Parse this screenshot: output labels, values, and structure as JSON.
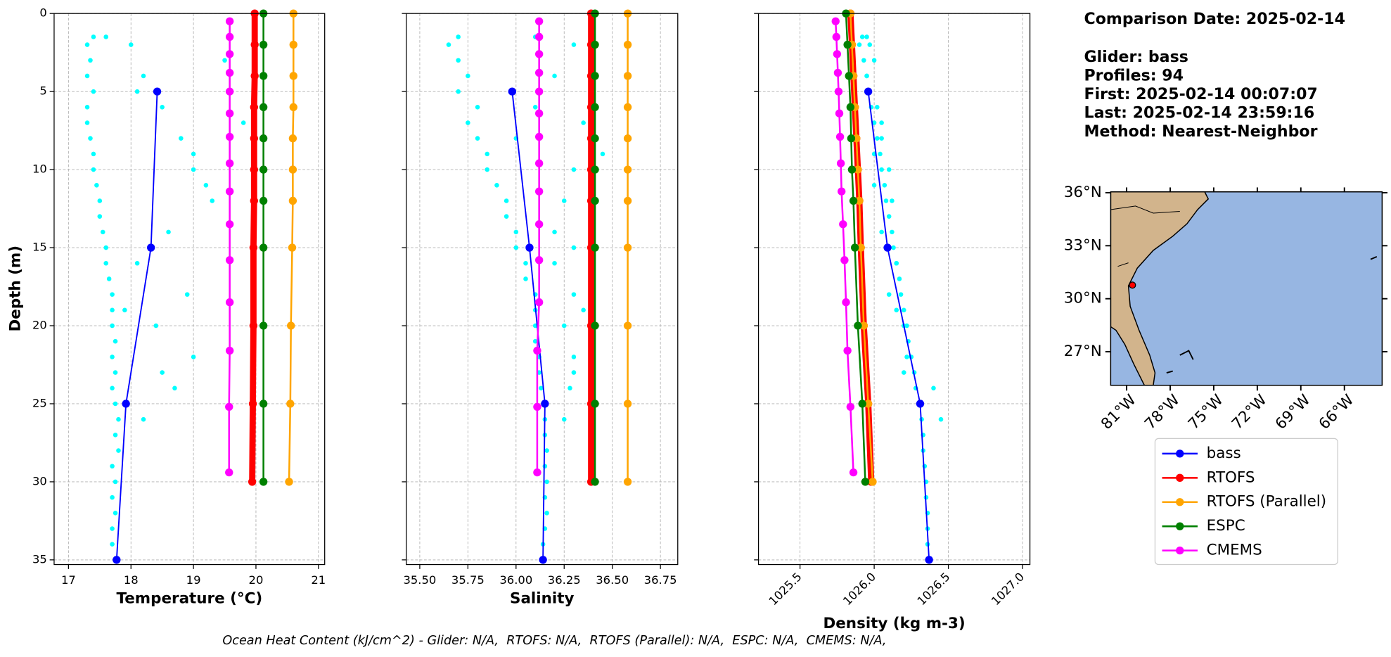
{
  "chart_data": [
    {
      "type": "profile",
      "xlabel": "Temperature (°C)",
      "ylabel": "Depth (m)",
      "xlim": [
        16.77,
        21.1
      ],
      "ylim": [
        0,
        35.3
      ],
      "y_inverted": true,
      "grid": true,
      "ytick_labels": true,
      "xticks": [
        17,
        18,
        19,
        20,
        21
      ],
      "yticks": [
        0,
        5,
        10,
        15,
        20,
        25,
        30,
        35
      ],
      "series": [
        {
          "style": "scatter",
          "color": "#00ffff",
          "y": [
            1.5,
            2,
            3,
            4,
            5,
            6,
            7,
            8,
            9,
            10,
            11,
            12,
            13,
            14,
            15,
            16,
            17,
            18,
            19,
            20,
            21,
            22,
            23,
            24,
            25,
            26,
            27,
            28,
            29,
            30,
            31,
            32,
            33,
            34,
            2,
            4,
            6,
            8,
            10,
            12,
            14,
            16,
            18,
            20,
            22,
            24,
            3,
            7,
            11,
            15,
            19,
            23,
            26,
            1.5,
            5,
            9
          ],
          "x": [
            17.4,
            17.3,
            17.35,
            17.3,
            17.4,
            17.3,
            17.3,
            17.35,
            17.4,
            17.4,
            17.45,
            17.5,
            17.5,
            17.55,
            17.6,
            17.6,
            17.65,
            17.7,
            17.7,
            17.7,
            17.75,
            17.7,
            17.75,
            17.7,
            17.75,
            17.8,
            17.75,
            17.8,
            17.7,
            17.75,
            17.7,
            17.75,
            17.7,
            17.7,
            18.0,
            18.2,
            18.5,
            18.8,
            19.0,
            19.3,
            18.6,
            18.1,
            18.9,
            18.4,
            19.0,
            18.7,
            19.5,
            19.8,
            19.2,
            18.3,
            17.9,
            18.5,
            18.2,
            17.6,
            18.1,
            19.0
          ]
        },
        {
          "style": "line",
          "name": "bass",
          "color": "#0000ff",
          "linewidth": 1.5,
          "y": [
            5,
            15,
            25,
            35
          ],
          "x": [
            18.42,
            18.32,
            17.92,
            17.77
          ]
        },
        {
          "style": "line",
          "name": "RTOFS",
          "color": "#ff0000",
          "linewidth": 7,
          "y": [
            0,
            2,
            4,
            6,
            8,
            10,
            12,
            15,
            20,
            25,
            30
          ],
          "x": [
            19.98,
            19.98,
            19.98,
            19.97,
            19.97,
            19.97,
            19.97,
            19.96,
            19.96,
            19.95,
            19.94
          ]
        },
        {
          "style": "line",
          "name": "RTOFS (Parallel)",
          "color": "#ffa500",
          "linewidth": 2,
          "y": [
            0,
            2,
            4,
            6,
            8,
            10,
            12,
            15,
            20,
            25,
            30
          ],
          "x": [
            20.6,
            20.6,
            20.6,
            20.6,
            20.59,
            20.59,
            20.59,
            20.58,
            20.56,
            20.55,
            20.53
          ]
        },
        {
          "style": "line",
          "name": "ESPC",
          "color": "#008000",
          "linewidth": 2,
          "y": [
            0,
            2,
            4,
            6,
            8,
            10,
            12,
            15,
            20,
            25,
            30
          ],
          "x": [
            20.12,
            20.12,
            20.12,
            20.12,
            20.12,
            20.12,
            20.12,
            20.12,
            20.12,
            20.12,
            20.12
          ]
        },
        {
          "style": "line",
          "name": "CMEMS",
          "color": "#ff00ff",
          "linewidth": 2,
          "y": [
            0.5,
            1.5,
            2.6,
            3.8,
            5,
            6.4,
            7.9,
            9.6,
            11.4,
            13.5,
            15.8,
            18.5,
            21.6,
            25.2,
            29.4
          ],
          "x": [
            19.58,
            19.58,
            19.58,
            19.58,
            19.58,
            19.58,
            19.58,
            19.58,
            19.58,
            19.58,
            19.58,
            19.58,
            19.58,
            19.57,
            19.57
          ]
        }
      ]
    },
    {
      "type": "profile",
      "xlabel": "Salinity",
      "xlim": [
        35.43,
        36.84
      ],
      "ylim": [
        0,
        35.3
      ],
      "y_inverted": true,
      "grid": true,
      "ytick_labels": false,
      "xticks": [
        {
          "value": 35.5,
          "label": "35.50"
        },
        35.75,
        {
          "value": 36,
          "label": "36.00"
        },
        36.25,
        {
          "value": 36.5,
          "label": "36.50"
        },
        36.75
      ],
      "yticks": [
        0,
        5,
        10,
        15,
        20,
        25,
        30,
        35
      ],
      "series": [
        {
          "style": "scatter",
          "color": "#00ffff",
          "y": [
            1.5,
            2,
            3,
            4,
            5,
            6,
            7,
            8,
            9,
            10,
            11,
            12,
            13,
            14,
            15,
            16,
            17,
            18,
            19,
            20,
            21,
            22,
            23,
            24,
            25,
            26,
            27,
            28,
            29,
            30,
            31,
            32,
            33,
            34,
            2,
            4,
            6,
            8,
            10,
            12,
            14,
            16,
            18,
            20,
            22,
            24,
            3,
            7,
            11,
            15,
            19,
            23,
            26,
            1.5,
            5,
            9
          ],
          "x": [
            35.7,
            35.65,
            35.7,
            35.75,
            35.7,
            35.8,
            35.75,
            35.8,
            35.85,
            35.85,
            35.9,
            35.95,
            35.95,
            36.0,
            36.0,
            36.05,
            36.05,
            36.1,
            36.1,
            36.1,
            36.1,
            36.12,
            36.12,
            36.13,
            36.15,
            36.15,
            36.15,
            36.16,
            36.15,
            36.16,
            36.15,
            36.16,
            36.15,
            36.14,
            36.3,
            36.2,
            36.1,
            36.0,
            36.3,
            36.25,
            36.2,
            36.2,
            36.3,
            36.25,
            36.3,
            36.28,
            36.4,
            36.35,
            36.4,
            36.3,
            36.35,
            36.3,
            36.25,
            36.1,
            36.4,
            36.45
          ]
        },
        {
          "style": "line",
          "name": "bass",
          "color": "#0000ff",
          "linewidth": 1.5,
          "y": [
            5,
            15,
            25,
            35
          ],
          "x": [
            35.98,
            36.07,
            36.15,
            36.14
          ]
        },
        {
          "style": "line",
          "name": "RTOFS",
          "color": "#ff0000",
          "linewidth": 7,
          "y": [
            0,
            2,
            4,
            6,
            8,
            10,
            12,
            15,
            20,
            25,
            30
          ],
          "x": [
            36.39,
            36.39,
            36.39,
            36.39,
            36.39,
            36.39,
            36.39,
            36.39,
            36.39,
            36.39,
            36.39
          ]
        },
        {
          "style": "line",
          "name": "RTOFS (Parallel)",
          "color": "#ffa500",
          "linewidth": 2,
          "y": [
            0,
            2,
            4,
            6,
            8,
            10,
            12,
            15,
            20,
            25,
            30
          ],
          "x": [
            36.58,
            36.58,
            36.58,
            36.58,
            36.58,
            36.58,
            36.58,
            36.58,
            36.58,
            36.58,
            36.58
          ]
        },
        {
          "style": "line",
          "name": "ESPC",
          "color": "#008000",
          "linewidth": 2,
          "y": [
            0,
            2,
            4,
            6,
            8,
            10,
            12,
            15,
            20,
            25,
            30
          ],
          "x": [
            36.41,
            36.41,
            36.41,
            36.41,
            36.41,
            36.41,
            36.41,
            36.41,
            36.41,
            36.41,
            36.41
          ]
        },
        {
          "style": "line",
          "name": "CMEMS",
          "color": "#ff00ff",
          "linewidth": 2,
          "y": [
            0.5,
            1.5,
            2.6,
            3.8,
            5,
            6.4,
            7.9,
            9.6,
            11.4,
            13.5,
            15.8,
            18.5,
            21.6,
            25.2,
            29.4
          ],
          "x": [
            36.12,
            36.12,
            36.12,
            36.12,
            36.12,
            36.12,
            36.12,
            36.12,
            36.12,
            36.12,
            36.12,
            36.12,
            36.11,
            36.11,
            36.11
          ]
        }
      ]
    },
    {
      "type": "profile",
      "xlabel": "Density (kg m-3)",
      "xlim": [
        1025.22,
        1027.05
      ],
      "ylim": [
        0,
        35.3
      ],
      "y_inverted": true,
      "grid": true,
      "ytick_labels": false,
      "xtick_rotation": 45,
      "xticks": [
        1025.5,
        {
          "value": 1026,
          "label": "1026.0"
        },
        1026.5,
        {
          "value": 1027,
          "label": "1027.0"
        }
      ],
      "yticks": [
        0,
        5,
        10,
        15,
        20,
        25,
        30,
        35
      ],
      "series": [
        {
          "style": "scatter",
          "color": "#00ffff",
          "y": [
            1.5,
            2,
            3,
            4,
            5,
            6,
            7,
            8,
            9,
            10,
            11,
            12,
            13,
            14,
            15,
            16,
            17,
            18,
            19,
            20,
            21,
            22,
            23,
            24,
            25,
            26,
            27,
            28,
            29,
            30,
            31,
            32,
            33,
            34,
            2,
            4,
            6,
            8,
            10,
            12,
            14,
            16,
            18,
            20,
            22,
            24,
            3,
            7,
            11,
            15,
            19,
            23,
            26,
            1.5,
            5,
            9
          ],
          "x": [
            1025.92,
            1025.9,
            1025.93,
            1025.95,
            1025.96,
            1025.98,
            1026.0,
            1026.02,
            1026.04,
            1026.05,
            1026.07,
            1026.08,
            1026.1,
            1026.12,
            1026.13,
            1026.15,
            1026.17,
            1026.18,
            1026.2,
            1026.22,
            1026.23,
            1026.25,
            1026.27,
            1026.28,
            1026.3,
            1026.32,
            1026.33,
            1026.33,
            1026.34,
            1026.35,
            1026.35,
            1026.36,
            1026.36,
            1026.36,
            1025.97,
            1025.95,
            1026.02,
            1026.05,
            1026.1,
            1026.12,
            1026.05,
            1026.15,
            1026.1,
            1026.2,
            1026.22,
            1026.4,
            1026.0,
            1026.05,
            1026.0,
            1026.1,
            1026.15,
            1026.2,
            1026.45,
            1025.95,
            1025.95,
            1026.0
          ]
        },
        {
          "style": "line",
          "name": "bass",
          "color": "#0000ff",
          "linewidth": 1.5,
          "y": [
            5,
            15,
            25,
            35
          ],
          "x": [
            1025.96,
            1026.09,
            1026.31,
            1026.37
          ]
        },
        {
          "style": "line",
          "name": "RTOFS",
          "color": "#ff0000",
          "linewidth": 7,
          "y": [
            0,
            2,
            4,
            6,
            8,
            10,
            12,
            15,
            20,
            25,
            30
          ],
          "x": [
            1025.84,
            1025.85,
            1025.86,
            1025.87,
            1025.88,
            1025.89,
            1025.9,
            1025.91,
            1025.93,
            1025.96,
            1025.98
          ]
        },
        {
          "style": "line",
          "name": "RTOFS (Parallel)",
          "color": "#ffa500",
          "linewidth": 2,
          "y": [
            0,
            2,
            4,
            6,
            8,
            10,
            12,
            15,
            20,
            25,
            30
          ],
          "x": [
            1025.84,
            1025.85,
            1025.86,
            1025.87,
            1025.88,
            1025.89,
            1025.9,
            1025.91,
            1025.93,
            1025.96,
            1025.99
          ]
        },
        {
          "style": "line",
          "name": "ESPC",
          "color": "#008000",
          "linewidth": 2,
          "y": [
            0,
            2,
            4,
            6,
            8,
            10,
            12,
            15,
            20,
            25,
            30
          ],
          "x": [
            1025.81,
            1025.82,
            1025.83,
            1025.84,
            1025.845,
            1025.85,
            1025.86,
            1025.87,
            1025.89,
            1025.92,
            1025.94
          ]
        },
        {
          "style": "line",
          "name": "CMEMS",
          "color": "#ff00ff",
          "linewidth": 2,
          "y": [
            0.5,
            1.5,
            2.6,
            3.8,
            5,
            6.4,
            7.9,
            9.6,
            11.4,
            13.5,
            15.8,
            18.5,
            21.6,
            25.2,
            29.4
          ],
          "x": [
            1025.74,
            1025.745,
            1025.75,
            1025.755,
            1025.76,
            1025.765,
            1025.77,
            1025.775,
            1025.78,
            1025.79,
            1025.8,
            1025.81,
            1025.82,
            1025.84,
            1025.86
          ]
        }
      ]
    },
    {
      "type": "map",
      "xlim": [
        -82.1,
        -63.4
      ],
      "ylim": [
        25.1,
        36.05
      ],
      "ocean_color": "#97b6e2",
      "land_color": "#d2b48c",
      "xticks": [
        {
          "value": -81,
          "label": "81°W"
        },
        {
          "value": -78,
          "label": "78°W"
        },
        {
          "value": -75,
          "label": "75°W"
        },
        {
          "value": -72,
          "label": "72°W"
        },
        {
          "value": -69,
          "label": "69°W"
        },
        {
          "value": -66,
          "label": "66°W"
        }
      ],
      "yticks": [
        {
          "value": 36,
          "label": "36°N"
        },
        {
          "value": 33,
          "label": "33°N"
        },
        {
          "value": 30,
          "label": "30°N"
        },
        {
          "value": 27,
          "label": "27°N"
        }
      ],
      "marker": {
        "lon": -80.6,
        "lat": 30.77,
        "color": "#ff0000"
      }
    }
  ],
  "info": [
    "Comparison Date: 2025-02-14",
    "Glider: bass",
    "Profiles: 94",
    "First: 2025-02-14 00:07:07",
    "Last: 2025-02-14 23:59:16",
    "Method: Nearest-Neighbor"
  ],
  "footnote": "Ocean Heat Content (kJ/cm^2) - Glider: N/A,  RTOFS: N/A,  RTOFS (Parallel): N/A,  ESPC: N/A,  CMEMS: N/A,"
}
